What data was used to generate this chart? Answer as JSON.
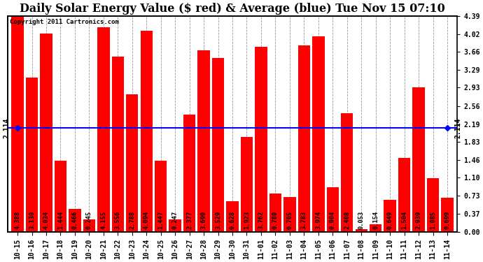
{
  "title": "Daily Solar Energy Value ($ red) & Average (blue) Tue Nov 15 07:10",
  "copyright": "Copyright 2011 Cartronics.com",
  "categories": [
    "10-15",
    "10-16",
    "10-17",
    "10-18",
    "10-19",
    "10-20",
    "10-21",
    "10-22",
    "10-23",
    "10-24",
    "10-25",
    "10-26",
    "10-27",
    "10-28",
    "10-29",
    "10-30",
    "10-31",
    "11-01",
    "11-02",
    "11-03",
    "11-04",
    "11-05",
    "11-06",
    "11-07",
    "11-08",
    "11-09",
    "11-10",
    "11-11",
    "11-12",
    "11-13",
    "11-14"
  ],
  "values": [
    4.388,
    3.13,
    4.034,
    1.444,
    0.466,
    0.245,
    4.155,
    3.556,
    2.788,
    4.094,
    1.447,
    0.247,
    2.377,
    3.69,
    3.529,
    0.628,
    1.923,
    3.762,
    0.78,
    0.705,
    3.783,
    3.974,
    0.904,
    2.408,
    0.053,
    0.154,
    0.649,
    1.504,
    2.939,
    1.085,
    0.699
  ],
  "average": 2.114,
  "bar_color": "#FF0000",
  "avg_line_color": "#0000FF",
  "background_color": "#FFFFFF",
  "plot_bg_color": "#FFFFFF",
  "grid_color": "#999999",
  "title_fontsize": 11.5,
  "ylabel_right": [
    "0.00",
    "0.37",
    "0.73",
    "1.10",
    "1.46",
    "1.83",
    "2.19",
    "2.56",
    "2.93",
    "3.29",
    "3.66",
    "4.02",
    "4.39"
  ],
  "ylim": [
    0,
    4.39
  ],
  "avg_label": "2.114",
  "tick_label_fontsize": 7.0,
  "value_label_fontsize": 6.2
}
